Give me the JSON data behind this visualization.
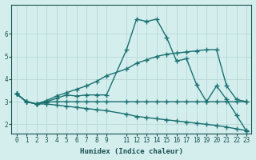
{
  "xlabel": "Humidex (Indice chaleur)",
  "xlim": [
    -0.5,
    23.5
  ],
  "ylim": [
    1.6,
    7.3
  ],
  "background_color": "#d4eeee",
  "grid_color": "#b8d8d8",
  "line_color": "#1a7070",
  "series": [
    {
      "x": [
        0,
        1,
        2,
        3,
        4,
        5,
        6,
        7,
        8,
        9,
        11,
        12,
        13,
        14,
        15,
        16,
        17,
        18,
        19,
        20,
        21,
        22,
        23
      ],
      "y": [
        3.35,
        3.0,
        2.9,
        3.0,
        3.15,
        3.3,
        3.25,
        3.3,
        3.3,
        3.3,
        5.3,
        6.65,
        6.55,
        6.65,
        5.85,
        4.8,
        4.9,
        3.75,
        3.0,
        3.7,
        3.1,
        2.4,
        1.7
      ]
    },
    {
      "x": [
        0,
        1,
        2,
        3,
        4,
        5,
        6,
        7,
        8,
        9,
        11,
        12,
        13,
        14,
        15,
        16,
        17,
        18,
        19,
        20,
        21,
        22,
        23
      ],
      "y": [
        3.35,
        3.0,
        2.9,
        3.05,
        3.25,
        3.4,
        3.55,
        3.7,
        3.9,
        4.15,
        4.45,
        4.7,
        4.85,
        5.0,
        5.1,
        5.15,
        5.2,
        5.25,
        5.3,
        5.3,
        3.7,
        3.1,
        3.0
      ]
    },
    {
      "x": [
        0,
        1,
        2,
        3,
        4,
        5,
        6,
        7,
        8,
        9,
        11,
        12,
        13,
        14,
        15,
        16,
        17,
        18,
        19,
        20,
        21,
        22,
        23
      ],
      "y": [
        3.35,
        3.0,
        2.9,
        2.98,
        3.0,
        3.0,
        3.0,
        3.0,
        3.0,
        3.0,
        3.0,
        3.0,
        3.0,
        3.0,
        3.0,
        3.0,
        3.0,
        3.0,
        3.0,
        3.0,
        3.0,
        3.0,
        3.0
      ]
    },
    {
      "x": [
        0,
        1,
        2,
        3,
        4,
        5,
        6,
        7,
        8,
        9,
        11,
        12,
        13,
        14,
        15,
        16,
        17,
        18,
        19,
        20,
        21,
        22,
        23
      ],
      "y": [
        3.35,
        3.0,
        2.9,
        2.9,
        2.85,
        2.8,
        2.75,
        2.7,
        2.65,
        2.6,
        2.45,
        2.35,
        2.3,
        2.25,
        2.2,
        2.15,
        2.1,
        2.05,
        2.0,
        1.95,
        1.88,
        1.8,
        1.72
      ]
    }
  ],
  "xticks": [
    0,
    1,
    2,
    3,
    4,
    5,
    6,
    7,
    8,
    9,
    11,
    12,
    13,
    14,
    15,
    16,
    17,
    18,
    19,
    20,
    21,
    22,
    23
  ],
  "yticks": [
    2,
    3,
    4,
    5,
    6
  ],
  "marker": "+",
  "marker_size": 4,
  "line_width": 1.0,
  "font_color": "#1a5050",
  "tick_fontsize": 5.5,
  "label_fontsize": 6.5
}
